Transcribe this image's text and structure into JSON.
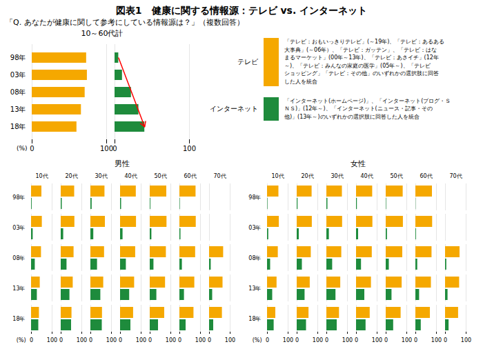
{
  "title": "図表1　健康に関する情報源：テレビ vs. インターネット",
  "subtitle": "「Q. あなたが健康に関して参考にしている情報源は？」（複数回答）",
  "chart_data": [
    {
      "type": "bar",
      "orientation": "horizontal",
      "title": "10～60代計",
      "xlabel": "(%)",
      "categories": [
        "98年",
        "03年",
        "08年",
        "13年",
        "18年"
      ],
      "series": [
        {
          "name": "テレビ",
          "color": "#F5A800",
          "values": [
            73,
            74,
            71,
            66,
            60
          ]
        },
        {
          "name": "インターネット",
          "color": "#1E8B3C",
          "values": [
            5,
            10,
            22,
            32,
            40
          ]
        }
      ],
      "annotations": [
        "「テレビ：おもいっきりテレビ」(～19年)、「テレビ：あるある\n大事典」(～06年）、「テレビ：ガッテン」、「テレビ：はな\nまるマーケット」(00年～13年)、「テレビ：あさイチ」(12年\n～)、「テレビ：みんなの家庭の医学」(05年～)、「テレビ\nショッピング」「テレビ：その他」のいずれかの選択肢に回答\nした人を統合",
        "「インターネット(ホームページ)」、「インターネット(ブログ・Ｓ\nＮＳ)」(12年～)、「インターネット(ニュース・記事・その\n他)」(13年～)のいずれかの選択肢に回答した人を統合"
      ],
      "xlim": [
        0,
        100
      ],
      "xticks": [
        0,
        100
      ],
      "grid": true,
      "legend": "right"
    },
    {
      "type": "bar",
      "orientation": "horizontal",
      "title": "男性",
      "xlabel": "(%)",
      "categories": [
        "98年",
        "03年",
        "08年",
        "13年",
        "18年"
      ],
      "groups": [
        "10代",
        "20代",
        "30代",
        "40代",
        "50代",
        "60代",
        "70代"
      ],
      "series": [
        {
          "name": "テレビ",
          "color": "#F5A800",
          "values": [
            [
              50,
              65,
              68,
              76,
              80,
              78,
              0
            ],
            [
              52,
              66,
              70,
              77,
              81,
              79,
              0
            ],
            [
              48,
              62,
              66,
              73,
              78,
              76,
              68
            ],
            [
              42,
              58,
              62,
              68,
              74,
              72,
              65
            ],
            [
              38,
              52,
              56,
              63,
              70,
              68,
              62
            ]
          ]
        },
        {
          "name": "インターネット",
          "color": "#1E8B3C",
          "values": [
            [
              3,
              5,
              6,
              5,
              3,
              2,
              0
            ],
            [
              8,
              12,
              14,
              12,
              8,
              5,
              0
            ],
            [
              18,
              28,
              32,
              28,
              18,
              12,
              8
            ],
            [
              28,
              42,
              48,
              44,
              32,
              22,
              15
            ],
            [
              35,
              50,
              55,
              50,
              40,
              30,
              20
            ]
          ]
        }
      ],
      "xlim": [
        0,
        100
      ],
      "xticks": [
        0,
        100
      ],
      "grid": true
    },
    {
      "type": "bar",
      "orientation": "horizontal",
      "title": "女性",
      "xlabel": "(%)",
      "categories": [
        "98年",
        "03年",
        "08年",
        "13年",
        "18年"
      ],
      "groups": [
        "10代",
        "20代",
        "30代",
        "40代",
        "50代",
        "60代",
        "70代"
      ],
      "series": [
        {
          "name": "テレビ",
          "color": "#F5A800",
          "values": [
            [
              55,
              72,
              75,
              78,
              82,
              80,
              0
            ],
            [
              57,
              73,
              76,
              79,
              83,
              81,
              0
            ],
            [
              52,
              68,
              72,
              76,
              80,
              78,
              70
            ],
            [
              46,
              63,
              67,
              72,
              77,
              75,
              68
            ],
            [
              40,
              57,
              61,
              66,
              72,
              70,
              63
            ]
          ]
        },
        {
          "name": "インターネット",
          "color": "#1E8B3C",
          "values": [
            [
              2,
              4,
              5,
              4,
              2,
              1,
              0
            ],
            [
              6,
              10,
              12,
              10,
              6,
              3,
              0
            ],
            [
              15,
              25,
              28,
              24,
              15,
              9,
              6
            ],
            [
              25,
              38,
              44,
              40,
              28,
              18,
              12
            ],
            [
              32,
              45,
              50,
              46,
              36,
              26,
              17
            ]
          ]
        }
      ],
      "xlim": [
        0,
        100
      ],
      "xticks": [
        0,
        100
      ],
      "grid": true
    }
  ]
}
